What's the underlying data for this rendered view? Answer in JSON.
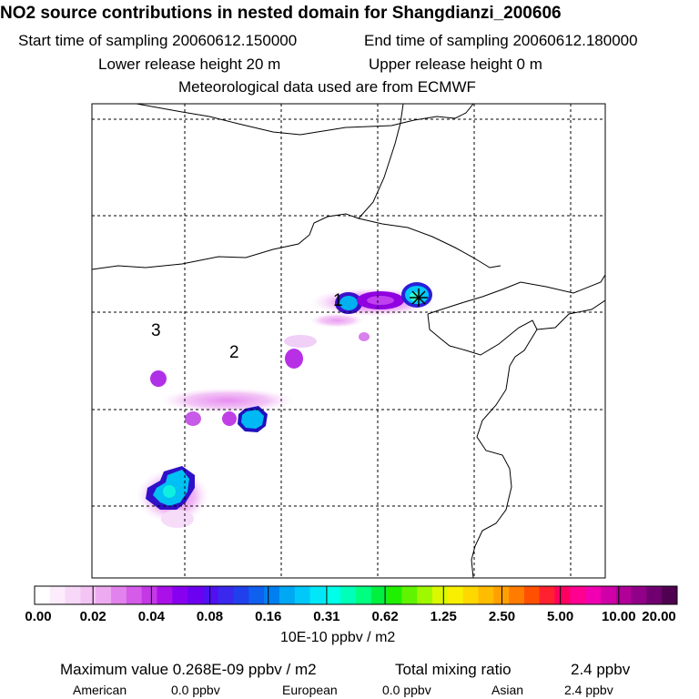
{
  "header": {
    "title": "NO2 source contributions in nested domain for Shangdianzi_200606",
    "start": "Start time of sampling 20060612.150000",
    "end": "End time of sampling 20060612.180000",
    "lower": "Lower release height   20 m",
    "upper": "Upper release height    0 m",
    "met": "Meteorological data used are from ECMWF"
  },
  "chart_data": {
    "type": "heatmap",
    "title": "NO2 source contributions in nested domain for Shangdianzi_200606",
    "map_labels": [
      "1",
      "2",
      "3"
    ],
    "receptor": "Shangdianzi",
    "plumes": [
      {
        "region": "1",
        "peak_ppbv_m2": 0.16
      },
      {
        "region": "receptor",
        "peak_ppbv_m2": 0.268
      },
      {
        "region": "2",
        "peak_ppbv_m2": 0.12
      },
      {
        "region": "3",
        "peak_ppbv_m2": 0.16
      }
    ],
    "colorbar": {
      "tick_labels": [
        "0.00",
        "0.02",
        "0.04",
        "0.08",
        "0.16",
        "0.31",
        "0.62",
        "1.25",
        "2.50",
        "5.00",
        "10.00",
        "20.00"
      ],
      "tick_values": [
        0.0,
        0.02,
        0.04,
        0.08,
        0.16,
        0.31,
        0.62,
        1.25,
        2.5,
        5.0,
        10.0,
        20.0
      ],
      "colors": [
        "#ffffff",
        "#fcecfc",
        "#f8d8f8",
        "#f4c4f4",
        "#eeaaf0",
        "#e282ec",
        "#d45ce8",
        "#c438e6",
        "#aa10e8",
        "#8800f0",
        "#6c00f0",
        "#5010f0",
        "#3a28ee",
        "#2040ee",
        "#1060f0",
        "#0080f0",
        "#00a8f4",
        "#00c8f8",
        "#00e8f8",
        "#00ffe8",
        "#00ffb8",
        "#00ff80",
        "#00f040",
        "#20f000",
        "#60f400",
        "#a0f800",
        "#dcf800",
        "#f8f000",
        "#ffd800",
        "#ffbc00",
        "#ffa000",
        "#ff7c00",
        "#ff5000",
        "#ff2030",
        "#ff0060",
        "#ff0090",
        "#f000b0",
        "#d000a8",
        "#b00098",
        "#900088",
        "#700070",
        "#500050"
      ],
      "units": "10E-10 ppbv / m2"
    }
  },
  "footer": {
    "max_value": "Maximum value  0.268E-09 ppbv / m2",
    "total_label": "Total mixing ratio",
    "total_value": "2.4 ppbv",
    "american_label": "American",
    "american_value": "0.0 ppbv",
    "european_label": "European",
    "european_value": "0.0 ppbv",
    "asian_label": "Asian",
    "asian_value": "2.4 ppbv"
  }
}
